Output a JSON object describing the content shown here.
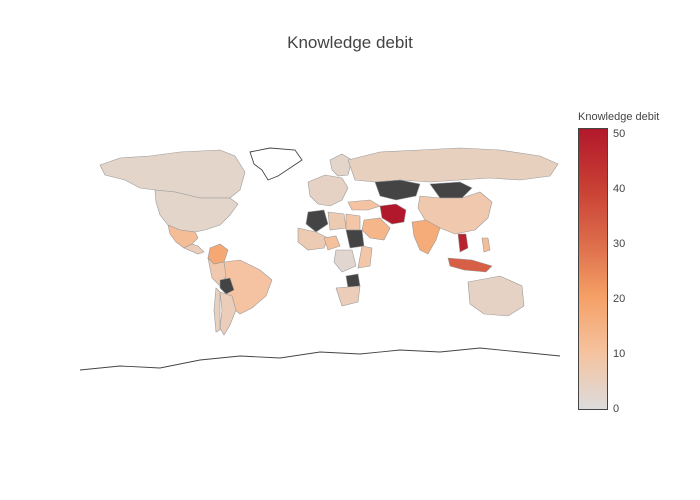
{
  "title": "Knowledge debit",
  "colorbar": {
    "title": "Knowledge debit",
    "min": 0,
    "max": 51,
    "ticks": [
      "0",
      "10",
      "20",
      "30",
      "40",
      "50"
    ],
    "colorscale": [
      "#dcdcdc",
      "#f5c3a0",
      "#f5a066",
      "#dc6a4a",
      "#c73d33",
      "#b2182b"
    ],
    "nodata_color": "#444444"
  },
  "map": {
    "projection": "equirectangular-like",
    "countries": [
      {
        "name": "Canada",
        "value": 3
      },
      {
        "name": "United States",
        "value": 3
      },
      {
        "name": "Greenland",
        "value": null
      },
      {
        "name": "Mexico",
        "value": 12
      },
      {
        "name": "Colombia",
        "value": 18
      },
      {
        "name": "Brazil",
        "value": 10
      },
      {
        "name": "Bolivia",
        "value": null
      },
      {
        "name": "Argentina",
        "value": 6
      },
      {
        "name": "Russia",
        "value": 5
      },
      {
        "name": "Kazakhstan",
        "value": null
      },
      {
        "name": "Mongolia",
        "value": null
      },
      {
        "name": "China",
        "value": 8
      },
      {
        "name": "India",
        "value": 17
      },
      {
        "name": "Iran",
        "value": 51
      },
      {
        "name": "Saudi Arabia",
        "value": 14
      },
      {
        "name": "Algeria",
        "value": null
      },
      {
        "name": "Libya",
        "value": 7
      },
      {
        "name": "Egypt",
        "value": 9
      },
      {
        "name": "Sudan",
        "value": null
      },
      {
        "name": "Nigeria",
        "value": 11
      },
      {
        "name": "DR Congo",
        "value": 2
      },
      {
        "name": "Zimbabwe",
        "value": null
      },
      {
        "name": "South Africa",
        "value": 6
      },
      {
        "name": "Indonesia",
        "value": 33
      },
      {
        "name": "Vietnam",
        "value": 48
      },
      {
        "name": "Philippines",
        "value": 12
      },
      {
        "name": "Australia",
        "value": 4
      }
    ]
  }
}
